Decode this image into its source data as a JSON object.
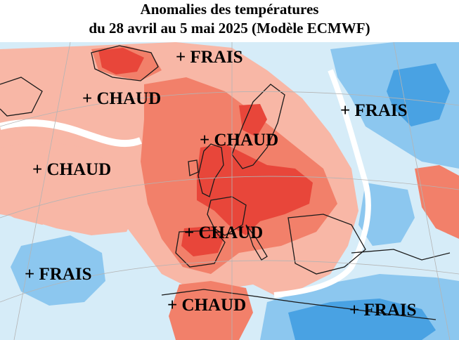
{
  "title": {
    "line1": "Anomalies des températures",
    "line2": "du 28 avril au 5 mai 2025 (Modèle ECMWF)"
  },
  "labels": {
    "north_frais": "+ FRAIS",
    "west_chaud": "+ CHAUD",
    "northsea_chaud": "+ CHAUD",
    "russia_frais": "+ FRAIS",
    "atlantic_chaud": "+ CHAUD",
    "spain_chaud": "+ CHAUD",
    "atlantic_frais": "+ FRAIS",
    "morocco_chaud": "+ CHAUD",
    "southeast_frais": "+ FRAIS"
  },
  "colors": {
    "strong_warm": "#e8463a",
    "warm": "#f2806a",
    "mild_warm": "#f8b7a6",
    "neutral": "#ffffff",
    "mild_cold": "#cfe8f8",
    "cold": "#8cc7ef",
    "strong_cold": "#49a2e3"
  }
}
